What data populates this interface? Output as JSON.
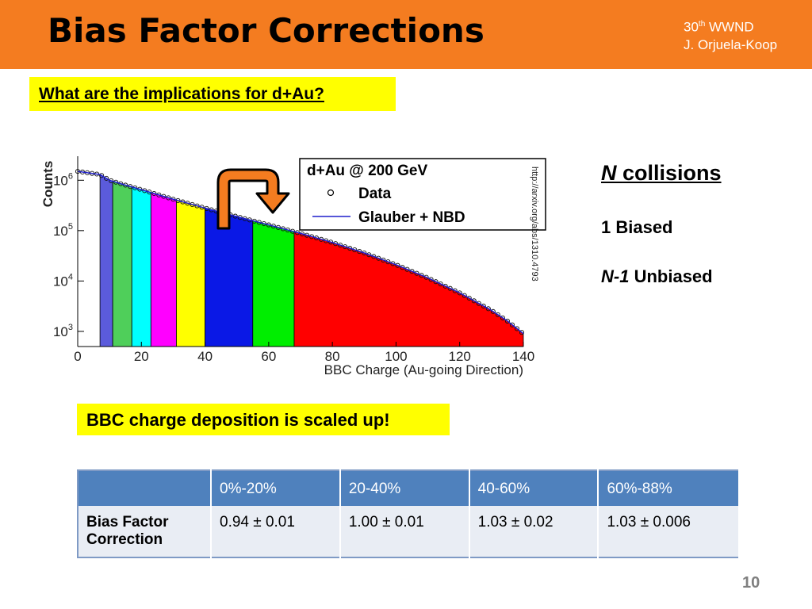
{
  "slide": {
    "title": "Bias Factor Corrections",
    "conference_num": "30",
    "conference_sup": "th",
    "conference_name": "WWND",
    "author": "J. Orjuela-Koop",
    "question": "What are the implications for d+Au?",
    "callout": "BBC charge deposition is scaled up!",
    "page_number": "10"
  },
  "right_panel": {
    "heading_n": "N",
    "heading_rest": "collisions",
    "biased": "1 Biased",
    "unbiased_n": "N-1",
    "unbiased_rest": "Unbiased"
  },
  "figure": {
    "url": "http://arxiv.org/abs/1310.4793",
    "legend_title": "d+Au @ 200 GeV",
    "legend_data": "Data",
    "legend_model": "Glauber + NBD"
  },
  "table": {
    "headers": [
      "",
      "0%-20%",
      "20-40%",
      "40-60%",
      "60%-88%"
    ],
    "row_label_line1": "Bias Factor",
    "row_label_line2": "Correction",
    "values": [
      "0.94 ± 0.01",
      "1.00 ± 0.01",
      "1.03 ± 0.02",
      "1.03 ± 0.006"
    ]
  },
  "chart_data": {
    "type": "area",
    "xlabel": "BBC Charge (Au-going Direction)",
    "ylabel": "Counts",
    "xlim": [
      0,
      140
    ],
    "ylim": [
      500,
      3000000
    ],
    "y_scale": "log",
    "x_ticks": [
      "0",
      "20",
      "40",
      "60",
      "80",
      "100",
      "120",
      "140"
    ],
    "y_ticks": [
      "10^3",
      "10^4",
      "10^5",
      "10^6"
    ],
    "legend_position": "top-right",
    "series": [
      {
        "name": "Data",
        "x": [
          0,
          7,
          10,
          15,
          20,
          30,
          40,
          50,
          60,
          70,
          80,
          90,
          100,
          110,
          120,
          130,
          135,
          140
        ],
        "values": [
          1500000,
          1300000,
          1000000,
          800000,
          650000,
          420000,
          280000,
          190000,
          130000,
          88000,
          58000,
          36000,
          21000,
          11500,
          5800,
          2600,
          1600,
          900
        ]
      },
      {
        "name": "Glauber + NBD",
        "x": [
          0,
          7,
          10,
          15,
          20,
          30,
          40,
          50,
          60,
          70,
          80,
          90,
          100,
          110,
          120,
          130,
          135,
          140
        ],
        "values": [
          1500000,
          1300000,
          1000000,
          800000,
          650000,
          420000,
          280000,
          190000,
          130000,
          88000,
          58000,
          36000,
          21000,
          11500,
          5800,
          2600,
          1600,
          900
        ]
      }
    ],
    "bands": [
      {
        "from": 7,
        "to": 11,
        "color": "#5b5bdc"
      },
      {
        "from": 11,
        "to": 17,
        "color": "#4fcf5a"
      },
      {
        "from": 17,
        "to": 23,
        "color": "#00ffff"
      },
      {
        "from": 23,
        "to": 31,
        "color": "#ff00ff"
      },
      {
        "from": 31,
        "to": 40,
        "color": "#ffff00"
      },
      {
        "from": 40,
        "to": 55,
        "color": "#0a18e6"
      },
      {
        "from": 55,
        "to": 68,
        "color": "#00ee00"
      },
      {
        "from": 68,
        "to": 140,
        "color": "#ff0000"
      }
    ]
  },
  "colors": {
    "header": "#f47c20",
    "highlight": "#ffff00",
    "table_header": "#4f81bd",
    "table_body": "#e9edf4",
    "arrow_fill": "#f47c20"
  }
}
